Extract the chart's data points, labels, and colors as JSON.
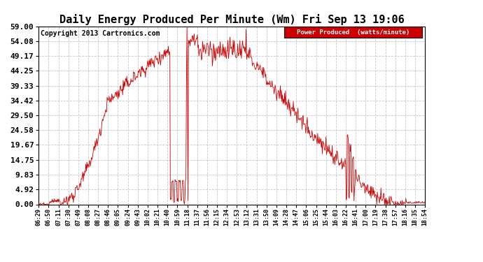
{
  "title": "Daily Energy Produced Per Minute (Wm) Fri Sep 13 19:06",
  "copyright": "Copyright 2013 Cartronics.com",
  "legend_label": "Power Produced  (watts/minute)",
  "legend_bg": "#cc0000",
  "legend_text_color": "#ffffff",
  "line_color": "#cc0000",
  "background_color": "#ffffff",
  "grid_color": "#bbbbbb",
  "yticks": [
    0.0,
    4.92,
    9.83,
    14.75,
    19.67,
    24.58,
    29.5,
    34.42,
    39.33,
    44.25,
    49.17,
    54.08,
    59.0
  ],
  "ylim": [
    0,
    59.0
  ],
  "xtick_labels": [
    "06:29",
    "06:50",
    "07:11",
    "07:30",
    "07:49",
    "08:08",
    "08:27",
    "08:46",
    "09:05",
    "09:24",
    "09:43",
    "10:02",
    "10:21",
    "10:40",
    "10:59",
    "11:18",
    "11:37",
    "11:56",
    "12:15",
    "12:34",
    "12:53",
    "13:12",
    "13:31",
    "13:50",
    "14:09",
    "14:28",
    "14:47",
    "15:06",
    "15:25",
    "15:44",
    "16:03",
    "16:22",
    "16:41",
    "17:00",
    "17:19",
    "17:38",
    "17:57",
    "18:16",
    "18:35",
    "18:54"
  ],
  "title_fontsize": 11,
  "copyright_fontsize": 7,
  "axis_fontsize": 6,
  "ytick_fontsize": 8
}
